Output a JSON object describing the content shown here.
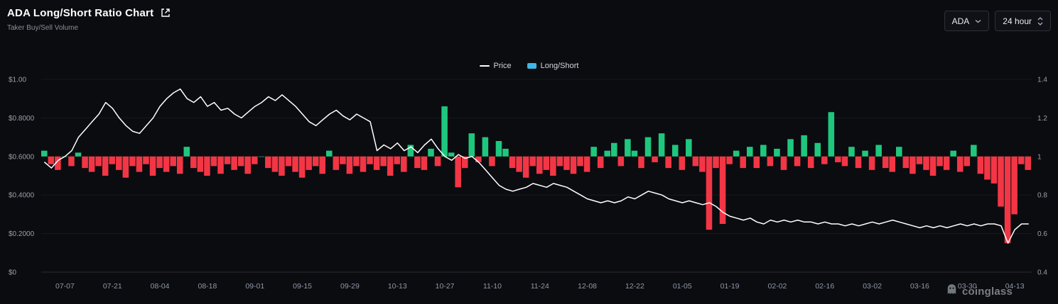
{
  "header": {
    "title": "ADA Long/Short Ratio Chart",
    "subtitle": "Taker Buy/Sell Volume"
  },
  "controls": {
    "symbol": "ADA",
    "interval": "24 hour"
  },
  "legend": {
    "price_label": "Price",
    "longshort_label": "Long/Short",
    "price_color": "#ffffff",
    "longshort_color": "#3fb6e8"
  },
  "watermark": {
    "text": "coinglass"
  },
  "colors": {
    "background": "#0b0c10",
    "green": "#1fc77e",
    "red": "#f23645",
    "price_line": "#ffffff",
    "grid": "rgba(255,255,255,0.055)",
    "axis_text": "#9aa0a6",
    "xaxis_text": "#8f97a8",
    "baseline_axis": "rgba(255,255,255,0.08)"
  },
  "chart_data": {
    "type": "mixed",
    "title": "ADA Long/Short Ratio Chart",
    "x_labels": [
      "07-07",
      "07-21",
      "08-04",
      "08-18",
      "09-01",
      "09-15",
      "09-29",
      "10-13",
      "10-27",
      "11-10",
      "11-24",
      "12-08",
      "12-22",
      "01-05",
      "01-19",
      "02-02",
      "02-16",
      "03-02",
      "03-16",
      "03-30",
      "04-13"
    ],
    "label_every": 7,
    "label_offset": 3,
    "left_axis": {
      "ticks": [
        "$1.00",
        "$0.8000",
        "$0.6000",
        "$0.4000",
        "$0.2000",
        "$0"
      ],
      "tick_values": [
        1.0,
        0.8,
        0.6,
        0.4,
        0.2,
        0
      ],
      "range": [
        0,
        1.0
      ]
    },
    "right_axis": {
      "ticks": [
        "1.4",
        "1.2",
        "1",
        "0.8",
        "0.6",
        "0.4"
      ],
      "tick_values": [
        1.4,
        1.2,
        1.0,
        0.8,
        0.6,
        0.4
      ],
      "range": [
        0.4,
        1.4
      ],
      "baseline": 1
    },
    "series": [
      {
        "name": "Price",
        "type": "line",
        "axis": "left",
        "values": [
          0.57,
          0.54,
          0.58,
          0.6,
          0.63,
          0.7,
          0.74,
          0.78,
          0.82,
          0.88,
          0.85,
          0.8,
          0.76,
          0.73,
          0.72,
          0.76,
          0.8,
          0.86,
          0.9,
          0.93,
          0.95,
          0.9,
          0.88,
          0.91,
          0.86,
          0.88,
          0.84,
          0.85,
          0.82,
          0.8,
          0.83,
          0.86,
          0.88,
          0.91,
          0.89,
          0.92,
          0.89,
          0.86,
          0.82,
          0.78,
          0.76,
          0.79,
          0.82,
          0.84,
          0.81,
          0.79,
          0.82,
          0.8,
          0.78,
          0.63,
          0.66,
          0.64,
          0.67,
          0.63,
          0.65,
          0.62,
          0.66,
          0.69,
          0.64,
          0.6,
          0.58,
          0.61,
          0.59,
          0.6,
          0.57,
          0.53,
          0.49,
          0.45,
          0.43,
          0.42,
          0.43,
          0.44,
          0.46,
          0.45,
          0.44,
          0.46,
          0.45,
          0.44,
          0.42,
          0.4,
          0.38,
          0.37,
          0.36,
          0.37,
          0.36,
          0.37,
          0.39,
          0.38,
          0.4,
          0.42,
          0.41,
          0.4,
          0.38,
          0.37,
          0.36,
          0.37,
          0.36,
          0.35,
          0.36,
          0.34,
          0.31,
          0.29,
          0.28,
          0.27,
          0.28,
          0.26,
          0.25,
          0.27,
          0.26,
          0.27,
          0.26,
          0.27,
          0.26,
          0.26,
          0.25,
          0.26,
          0.25,
          0.25,
          0.24,
          0.25,
          0.24,
          0.25,
          0.26,
          0.25,
          0.26,
          0.27,
          0.26,
          0.25,
          0.24,
          0.23,
          0.24,
          0.23,
          0.24,
          0.23,
          0.24,
          0.25,
          0.24,
          0.25,
          0.24,
          0.25,
          0.25,
          0.24,
          0.15,
          0.22,
          0.25,
          0.25
        ]
      },
      {
        "name": "Long/Short",
        "type": "bar",
        "axis": "right",
        "baseline": 1,
        "values": [
          1.03,
          0.96,
          0.93,
          1.0,
          0.95,
          1.02,
          0.94,
          0.92,
          0.95,
          0.9,
          0.96,
          0.93,
          0.89,
          0.95,
          0.92,
          0.96,
          0.9,
          0.94,
          0.92,
          0.95,
          0.91,
          1.05,
          0.94,
          0.92,
          0.9,
          0.95,
          0.91,
          0.96,
          0.93,
          0.95,
          0.91,
          0.96,
          1.0,
          0.94,
          0.92,
          0.9,
          0.95,
          0.92,
          0.89,
          0.93,
          0.95,
          0.91,
          1.03,
          0.93,
          0.96,
          0.91,
          0.95,
          0.92,
          0.96,
          0.93,
          0.95,
          0.9,
          0.96,
          0.92,
          1.06,
          0.94,
          0.93,
          1.04,
          0.95,
          1.26,
          1.02,
          0.84,
          0.94,
          1.12,
          0.97,
          1.1,
          0.95,
          1.08,
          1.04,
          0.94,
          0.92,
          0.89,
          0.95,
          0.91,
          0.93,
          0.9,
          0.95,
          0.93,
          0.91,
          0.95,
          0.92,
          1.05,
          0.94,
          1.03,
          1.07,
          0.95,
          1.09,
          1.03,
          0.94,
          1.1,
          0.97,
          1.12,
          0.94,
          1.06,
          0.93,
          1.09,
          0.95,
          0.92,
          0.62,
          0.94,
          0.65,
          0.96,
          1.03,
          0.94,
          1.05,
          0.94,
          1.06,
          0.95,
          1.04,
          0.93,
          1.09,
          0.95,
          1.11,
          0.94,
          1.07,
          0.96,
          1.23,
          0.97,
          0.95,
          1.05,
          0.94,
          1.03,
          0.93,
          1.06,
          0.94,
          0.92,
          1.05,
          0.94,
          0.91,
          0.96,
          0.93,
          0.9,
          0.95,
          0.93,
          1.03,
          0.92,
          0.95,
          1.06,
          0.91,
          0.88,
          0.86,
          0.74,
          0.55,
          0.7,
          0.96,
          0.93
        ]
      }
    ]
  }
}
